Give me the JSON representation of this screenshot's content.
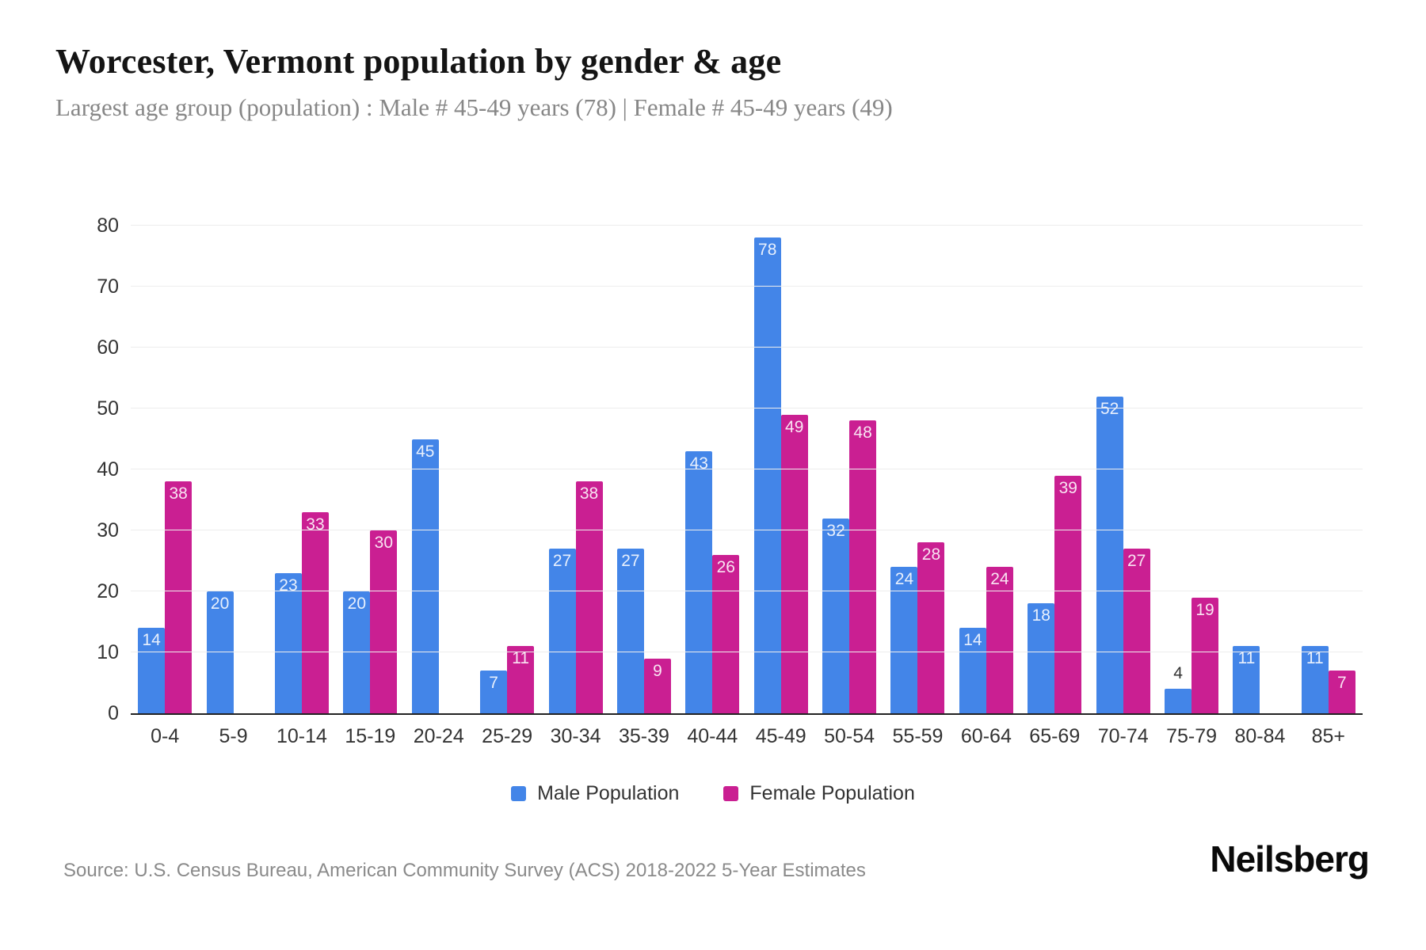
{
  "header": {
    "title": "Worcester, Vermont population by gender & age",
    "subtitle": "Largest age group (population) : Male # 45-49 years (78) | Female # 45-49 years (49)"
  },
  "chart_data": {
    "type": "bar",
    "title": "Worcester, Vermont population by gender & age",
    "subtitle": "Largest age group (population) : Male # 45-49 years (78) | Female # 45-49 years (49)",
    "categories": [
      "0-4",
      "5-9",
      "10-14",
      "15-19",
      "20-24",
      "25-29",
      "30-34",
      "35-39",
      "40-44",
      "45-49",
      "50-54",
      "55-59",
      "60-64",
      "65-69",
      "70-74",
      "75-79",
      "80-84",
      "85+"
    ],
    "series": [
      {
        "name": "Male Population",
        "color": "#4385e8",
        "values": [
          14,
          20,
          23,
          20,
          45,
          7,
          27,
          27,
          43,
          78,
          32,
          24,
          14,
          18,
          52,
          4,
          11,
          11
        ]
      },
      {
        "name": "Female Population",
        "color": "#ca1f92",
        "values": [
          38,
          0,
          33,
          30,
          0,
          11,
          38,
          9,
          26,
          49,
          48,
          28,
          24,
          39,
          27,
          19,
          0,
          7
        ]
      }
    ],
    "ylim": [
      0,
      80
    ],
    "yticks": [
      0,
      10,
      20,
      30,
      40,
      50,
      60,
      70,
      80
    ],
    "xlabel": "",
    "ylabel": "",
    "grid": "horizontal-only",
    "legend_position": "bottom",
    "value_labels": "inside-top, dark and above bar when bar too short",
    "colors": {
      "axis_line": "#222222",
      "gridline": "#ededed",
      "tick_text": "#333333",
      "bar_label_inside": "#ffffff",
      "bar_label_outside": "#333333"
    }
  },
  "footer": {
    "source": "Source: U.S. Census Bureau, American Community Survey (ACS) 2018-2022 5-Year Estimates",
    "brand": "Neilsberg"
  }
}
